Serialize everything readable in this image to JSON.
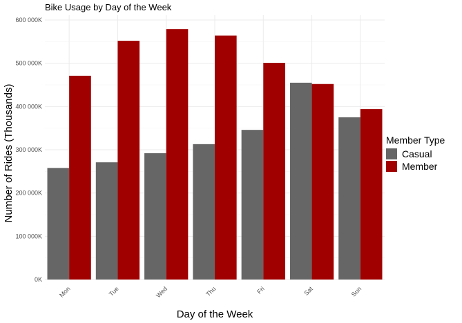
{
  "chart_data": {
    "type": "bar",
    "title": "Bike Usage by Day of the Week",
    "xlabel": "Day of the Week",
    "ylabel": "Number of Rides (Thousands)",
    "categories": [
      "Mon",
      "Tue",
      "Wed",
      "Thu",
      "Fri",
      "Sat",
      "Sun"
    ],
    "series": [
      {
        "name": "Casual",
        "color": "#666666",
        "values": [
          258,
          271,
          292,
          313,
          346,
          455,
          375
        ]
      },
      {
        "name": "Member",
        "color": "#a00000",
        "values": [
          471,
          552,
          579,
          564,
          501,
          452,
          394
        ]
      }
    ],
    "ylim": [
      0,
      600
    ],
    "yticks": [
      0,
      100,
      200,
      300,
      400,
      500,
      600
    ],
    "ytick_labels": [
      "0K",
      "100 000K",
      "200 000K",
      "300 000K",
      "400 000K",
      "500 000K",
      "600 000K"
    ],
    "legend": {
      "title": "Member Type",
      "position": "right"
    },
    "grid": true
  }
}
